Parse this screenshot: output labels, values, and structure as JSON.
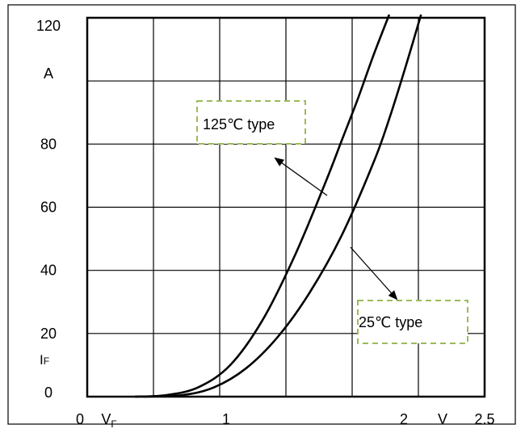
{
  "chart_data": {
    "type": "line",
    "title": "",
    "xlabel": "VF",
    "ylabel": "IF",
    "x_unit": "V",
    "y_unit": "A",
    "xlim": [
      0,
      2.5
    ],
    "ylim": [
      0,
      120
    ],
    "x_ticks": [
      "0",
      "",
      "1",
      "",
      "2",
      "",
      "2.5"
    ],
    "y_ticks": [
      "0",
      "20",
      "40",
      "60",
      "80",
      "",
      "120"
    ],
    "grid": true,
    "series": [
      {
        "name": "125℃ type",
        "color": "#000000",
        "x": [
          0.3,
          0.5,
          0.7,
          0.9,
          1.1,
          1.3,
          1.5,
          1.6,
          1.7,
          1.8,
          1.9
        ],
        "y": [
          0,
          0.5,
          3,
          10,
          24,
          44,
          68,
          81,
          94,
          108,
          121
        ]
      },
      {
        "name": "25℃ type",
        "color": "#000000",
        "x": [
          0.35,
          0.6,
          0.8,
          1.0,
          1.2,
          1.4,
          1.6,
          1.8,
          1.9,
          2.0,
          2.1
        ],
        "y": [
          0,
          0.5,
          3,
          9,
          19,
          33,
          51,
          74,
          88,
          104,
          121
        ]
      }
    ],
    "annotations": [
      {
        "text": "125℃ type",
        "points_to_series": 0
      },
      {
        "text": "25℃ type",
        "points_to_series": 1
      }
    ]
  }
}
